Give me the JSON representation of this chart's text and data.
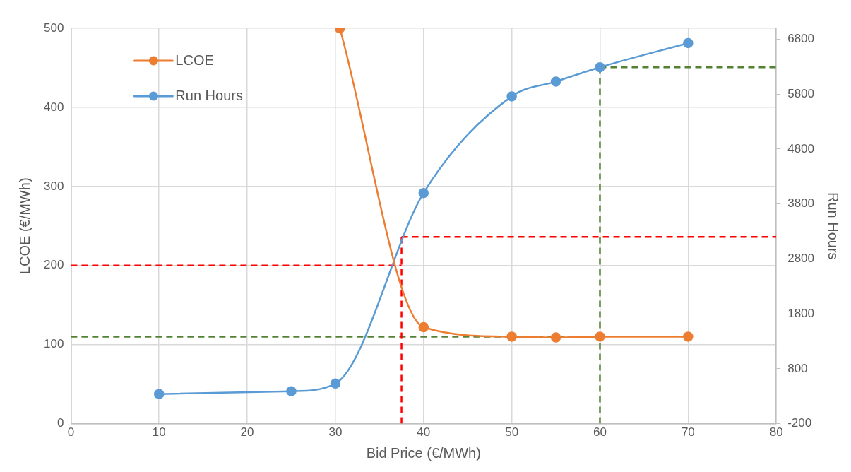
{
  "chart_data": {
    "type": "line",
    "xlabel": "Bid Price (€/MWh)",
    "ylabel": "LCOE (€/MWh)",
    "y2label": "Run Hours",
    "xlim": [
      0,
      80
    ],
    "xticks": [
      0,
      10,
      20,
      30,
      40,
      50,
      60,
      70,
      80
    ],
    "ylim": [
      0,
      500
    ],
    "yticks": [
      0,
      100,
      200,
      300,
      400,
      500
    ],
    "y2lim": [
      -200,
      7000
    ],
    "y2ticks": [
      -200,
      800,
      1800,
      2800,
      3800,
      4800,
      5800,
      6800
    ],
    "grid": true,
    "legend": "top left",
    "marker": "circle",
    "line_style": "solid",
    "series": [
      {
        "name": "LCOE",
        "color": "#ed7d31",
        "x": [
          30.5,
          40,
          50,
          55,
          60,
          70
        ],
        "values": [
          500,
          122,
          110,
          109,
          110,
          110
        ]
      },
      {
        "name": "Run Hours",
        "color": "#5b9bd5",
        "axis": "y2",
        "x": [
          10,
          25,
          30,
          40,
          50,
          55,
          60,
          70
        ],
        "values": [
          340,
          390,
          530,
          4000,
          5760,
          6030,
          6290,
          6730
        ]
      },
      {
        "color": "#ff0000",
        "x": [
          0,
          37.5
        ],
        "values": [
          200,
          200
        ],
        "marker": "none",
        "line_style": "dashed"
      },
      {
        "color": "#ff0000",
        "axis": "y2",
        "x": [
          37.5,
          37.5
        ],
        "values": [
          -200,
          3200
        ],
        "marker": "none",
        "line_style": "dashed"
      },
      {
        "color": "#ff0000",
        "axis": "y2",
        "x": [
          37.5,
          80
        ],
        "values": [
          3200,
          3200
        ],
        "marker": "none",
        "line_style": "dashed"
      },
      {
        "color": "#548235",
        "x": [
          0,
          60
        ],
        "values": [
          110,
          110
        ],
        "marker": "none",
        "line_style": "dashed"
      },
      {
        "color": "#548235",
        "axis": "y2",
        "x": [
          60,
          60
        ],
        "values": [
          -200,
          6290
        ],
        "marker": "none",
        "line_style": "dashed"
      },
      {
        "color": "#548235",
        "axis": "y2",
        "x": [
          60,
          80
        ],
        "values": [
          6290,
          6290
        ],
        "marker": "none",
        "line_style": "dashed"
      }
    ]
  }
}
